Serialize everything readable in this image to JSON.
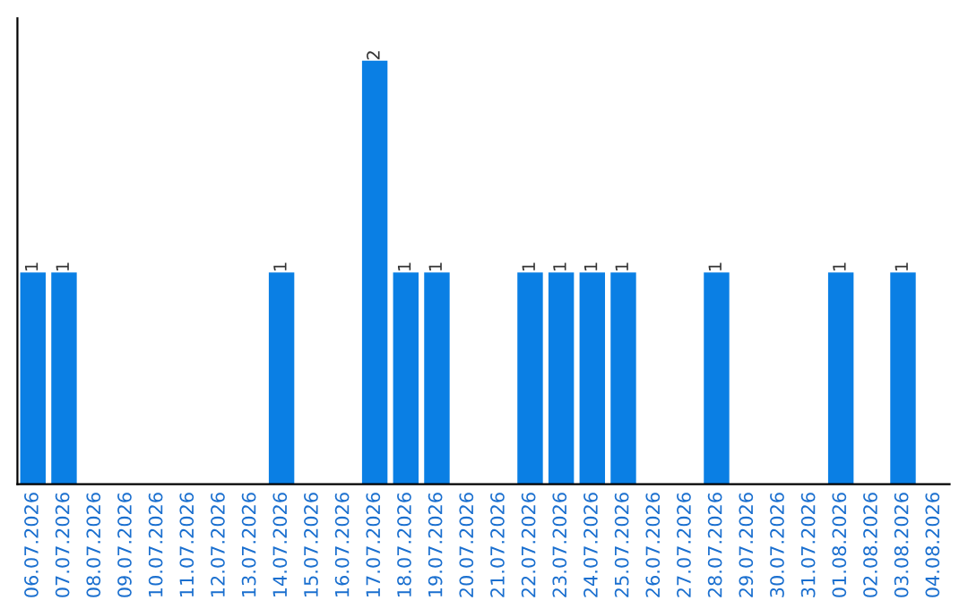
{
  "chart_data": {
    "type": "bar",
    "categories": [
      "06.07.2026",
      "07.07.2026",
      "08.07.2026",
      "09.07.2026",
      "10.07.2026",
      "11.07.2026",
      "12.07.2026",
      "13.07.2026",
      "14.07.2026",
      "15.07.2026",
      "16.07.2026",
      "17.07.2026",
      "18.07.2026",
      "19.07.2026",
      "20.07.2026",
      "21.07.2026",
      "22.07.2026",
      "23.07.2026",
      "24.07.2026",
      "25.07.2026",
      "26.07.2026",
      "27.07.2026",
      "28.07.2026",
      "29.07.2026",
      "30.07.2026",
      "31.07.2026",
      "01.08.2026",
      "02.08.2026",
      "03.08.2026",
      "04.08.2026"
    ],
    "values": [
      1,
      1,
      0,
      0,
      0,
      0,
      0,
      0,
      1,
      0,
      0,
      2,
      1,
      1,
      0,
      0,
      1,
      1,
      1,
      1,
      0,
      0,
      1,
      0,
      0,
      0,
      1,
      0,
      1,
      0
    ],
    "value_labels": [
      "1",
      "1",
      null,
      null,
      null,
      null,
      null,
      null,
      "1",
      null,
      null,
      "2",
      "1",
      "1",
      null,
      null,
      "1",
      "1",
      "1",
      "1",
      null,
      null,
      "1",
      null,
      null,
      null,
      "1",
      null,
      "1",
      null
    ],
    "color": "#0a7fe4",
    "tick_labels": "x",
    "grid": false
  }
}
